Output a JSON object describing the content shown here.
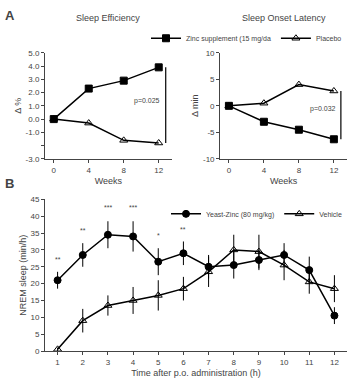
{
  "chart_data": [
    {
      "type": "line",
      "panel": "A",
      "title": "Sleep Efficiency",
      "xlabel": "Weeks",
      "ylabel": "Δ %",
      "x": [
        0,
        4,
        8,
        12
      ],
      "series": [
        {
          "color": "black",
          "marker": "square",
          "values": [
            0.0,
            2.3,
            2.9,
            3.9
          ]
        },
        {
          "color": "black",
          "marker": "triangle-up-open",
          "values": [
            0.0,
            -0.3,
            -1.6,
            -1.8
          ]
        }
      ],
      "xlim": [
        -1,
        13.5
      ],
      "xticks": [
        0,
        4,
        8,
        12
      ],
      "ylim": [
        -3.0,
        5.0
      ],
      "yticks": [
        {
          "value": -3.0,
          "label": "-3.0"
        },
        {
          "value": -2.0,
          "label": null
        },
        {
          "value": -1.0,
          "label": "-1.0"
        },
        {
          "value": 0.0,
          "label": "0.0"
        },
        {
          "value": 1.0,
          "label": "1.0"
        },
        {
          "value": 2.0,
          "label": "2.0"
        },
        {
          "value": 3.0,
          "label": "3.0"
        },
        {
          "value": 4.0,
          "label": "4.0"
        },
        {
          "value": 5.0,
          "label": "5.0"
        }
      ],
      "grid": false,
      "annotations": [
        {
          "text": "p=0.025",
          "x": 9.0,
          "y": 0.9
        }
      ],
      "brackets": [
        {
          "x": 12.8,
          "y0": 3.9,
          "y1": -1.8
        }
      ]
    },
    {
      "type": "line",
      "title": "Sleep Onset Latency",
      "xlabel": "Weeks",
      "ylabel": "Δ min",
      "x": [
        0,
        4,
        8,
        12
      ],
      "series": [
        {
          "name": "Zinc supplement (15 mg/da",
          "color": "black",
          "marker": "square",
          "values": [
            0.0,
            -3.0,
            -4.5,
            -6.3
          ]
        },
        {
          "name": "Placebo",
          "color": "black",
          "marker": "triangle-up-open",
          "values": [
            0.0,
            0.5,
            4.0,
            2.8
          ]
        }
      ],
      "xlim": [
        -1,
        13.5
      ],
      "xticks": [
        0,
        4,
        8,
        12
      ],
      "ylim": [
        -10,
        10
      ],
      "yticks": [
        -10,
        -5,
        0,
        5,
        10
      ],
      "grid": false,
      "legend": "upper right",
      "annotations": [
        {
          "text": "p=0.032",
          "x": 9.0,
          "y": -1.8
        }
      ],
      "brackets": [
        {
          "x": 12.8,
          "y0": -6.3,
          "y1": 2.8
        }
      ]
    },
    {
      "type": "line",
      "panel": "B",
      "xlabel": "Time after p.o. administration (h)",
      "ylabel": "NREM sleep (min/h)",
      "x": [
        1,
        2,
        3,
        4,
        5,
        6,
        7,
        8,
        9,
        10,
        11,
        12
      ],
      "series": [
        {
          "name": "Yeast-Zinc (80 mg/kg)",
          "color": "black",
          "marker": "circle",
          "values": [
            21.0,
            28.5,
            34.5,
            34.0,
            26.5,
            29.0,
            25.0,
            25.5,
            27.0,
            28.5,
            24.0,
            10.5
          ],
          "errors": [
            2.5,
            3.5,
            4.0,
            4.5,
            4.0,
            3.5,
            3.5,
            4.0,
            3.0,
            3.5,
            4.0,
            2.5
          ]
        },
        {
          "name": "Vehicle",
          "color": "black",
          "marker": "triangle-up-open",
          "values": [
            0.5,
            9.0,
            13.5,
            15.0,
            16.5,
            18.5,
            23.5,
            30.0,
            29.5,
            25.5,
            20.5,
            18.5
          ],
          "errors": [
            0.5,
            3.5,
            3.0,
            4.0,
            4.5,
            3.5,
            4.5,
            4.5,
            5.0,
            4.5,
            3.5,
            4.0
          ]
        }
      ],
      "xlim": [
        0.5,
        12.5
      ],
      "xticks": [
        1,
        2,
        3,
        4,
        5,
        6,
        7,
        8,
        9,
        10,
        11,
        12
      ],
      "ylim": [
        0,
        45
      ],
      "yticks": [
        0,
        5,
        10,
        15,
        20,
        25,
        30,
        35,
        40,
        45
      ],
      "grid": false,
      "legend": "upper right",
      "annotations": [
        {
          "text": "**",
          "x": 1,
          "y": 25.5
        },
        {
          "text": "**",
          "x": 2,
          "y": 34.0
        },
        {
          "text": "***",
          "x": 3,
          "y": 41.0
        },
        {
          "text": "***",
          "x": 4,
          "y": 41.0
        },
        {
          "text": "*",
          "x": 5,
          "y": 32.5
        },
        {
          "text": "**",
          "x": 6,
          "y": 34.5
        }
      ]
    }
  ]
}
